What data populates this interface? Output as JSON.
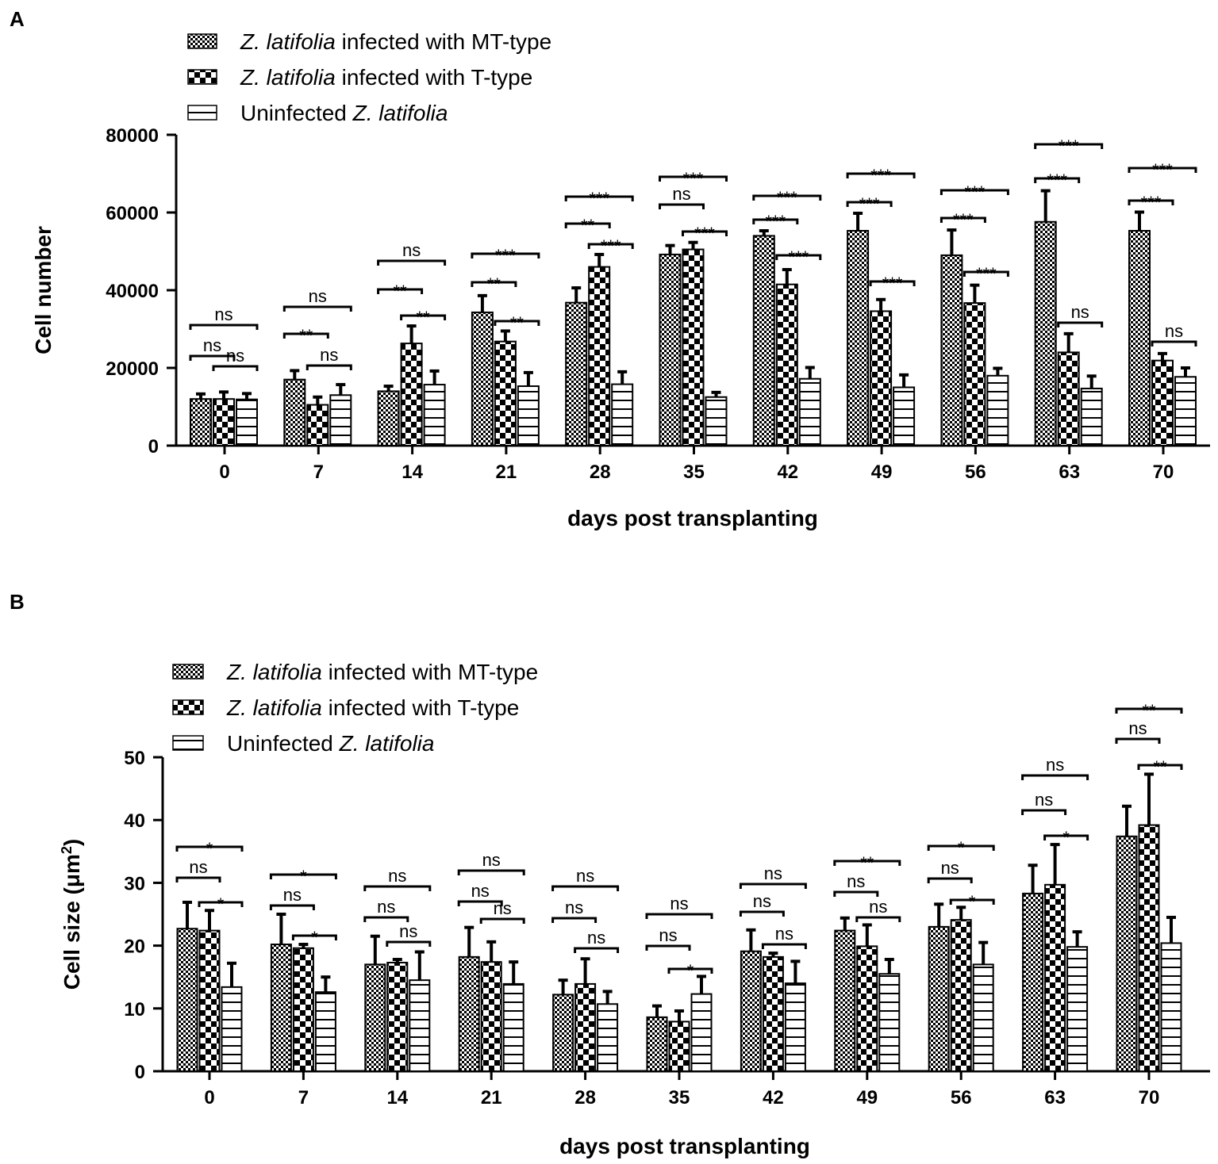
{
  "figure": {
    "panels": [
      "A",
      "B"
    ],
    "legend": {
      "entries": [
        {
          "italic": "Z. latifolia",
          "rest": " infected with MT-type",
          "order": "italic-first"
        },
        {
          "italic": "Z. latifolia",
          "rest": " infected with T-type",
          "order": "italic-first"
        },
        {
          "italic": "Z. latifolia",
          "rest": "Uninfected ",
          "order": "italic-last"
        }
      ]
    },
    "colors": {
      "ink": "#000000",
      "background": "#ffffff"
    }
  },
  "chart_data": [
    {
      "type": "bar",
      "panel": "A",
      "title": "",
      "xlabel": "days post transplanting",
      "ylabel": "Cell number",
      "ylim": [
        0,
        80000
      ],
      "yticks": [
        "0",
        "20000",
        "40000",
        "60000",
        "80000"
      ],
      "yticks_values": [
        0,
        20000,
        40000,
        60000,
        80000
      ],
      "categories": [
        "0",
        "7",
        "14",
        "21",
        "28",
        "35",
        "42",
        "49",
        "56",
        "63",
        "70"
      ],
      "series": [
        {
          "name": "Z. latifolia infected with MT-type",
          "pattern": "fine-check",
          "values": [
            12000,
            17000,
            14000,
            34300,
            36800,
            49200,
            54000,
            55300,
            49000,
            57600,
            55300
          ],
          "errors": [
            1300,
            2300,
            1300,
            4300,
            3800,
            2300,
            1300,
            4500,
            6500,
            8000,
            4800
          ]
        },
        {
          "name": "Z. latifolia infected with T-type",
          "pattern": "coarse-check",
          "values": [
            12000,
            10500,
            26300,
            26800,
            46000,
            50500,
            41500,
            34600,
            36700,
            24000,
            21900
          ],
          "errors": [
            1800,
            2000,
            4500,
            2700,
            3200,
            1800,
            3800,
            3000,
            4600,
            4800,
            1800
          ]
        },
        {
          "name": "Uninfected Z. latifolia",
          "pattern": "horizontal-lines",
          "values": [
            11900,
            13000,
            15700,
            15300,
            15800,
            12500,
            17200,
            15000,
            18000,
            14700,
            17700
          ],
          "errors": [
            1500,
            2700,
            3500,
            3500,
            3200,
            1200,
            2900,
            3200,
            1900,
            3200,
            2300
          ]
        }
      ],
      "significance": [
        {
          "day": "0",
          "mt_t": "ns",
          "t_un": "ns",
          "mt_un": "ns"
        },
        {
          "day": "7",
          "mt_t": "**",
          "t_un": "ns",
          "mt_un": "ns"
        },
        {
          "day": "14",
          "mt_t": "**",
          "t_un": "**",
          "mt_un": "ns"
        },
        {
          "day": "21",
          "mt_t": "**",
          "t_un": "**",
          "mt_un": "***"
        },
        {
          "day": "28",
          "mt_t": "**",
          "t_un": "***",
          "mt_un": "***"
        },
        {
          "day": "35",
          "mt_t": "ns",
          "t_un": "***",
          "mt_un": "***"
        },
        {
          "day": "42",
          "mt_t": "***",
          "t_un": "***",
          "mt_un": "***"
        },
        {
          "day": "49",
          "mt_t": "***",
          "t_un": "***",
          "mt_un": "***"
        },
        {
          "day": "56",
          "mt_t": "***",
          "t_un": "***",
          "mt_un": "***"
        },
        {
          "day": "63",
          "mt_t": "***",
          "t_un": "ns",
          "mt_un": "***"
        },
        {
          "day": "70",
          "mt_t": "***",
          "t_un": "ns",
          "mt_un": "***"
        }
      ],
      "legend_position": "top-left"
    },
    {
      "type": "bar",
      "panel": "B",
      "title": "",
      "xlabel": "days post transplanting",
      "ylabel": "Cell size (μm",
      "ylabel_superscript": "2",
      "ylabel_suffix": ")",
      "ylim": [
        0,
        50
      ],
      "yticks": [
        "0",
        "10",
        "20",
        "30",
        "40",
        "50"
      ],
      "yticks_values": [
        0,
        10,
        20,
        30,
        40,
        50
      ],
      "categories": [
        "0",
        "7",
        "14",
        "21",
        "28",
        "35",
        "42",
        "49",
        "56",
        "63",
        "70"
      ],
      "series": [
        {
          "name": "Z. latifolia infected with MT-type",
          "pattern": "fine-check",
          "values": [
            22.7,
            20.2,
            17.0,
            18.2,
            12.2,
            8.6,
            19.1,
            22.4,
            23.0,
            28.3,
            37.4
          ],
          "errors": [
            4.2,
            4.8,
            4.5,
            4.7,
            2.3,
            1.8,
            3.4,
            2.0,
            3.6,
            4.5,
            4.8
          ]
        },
        {
          "name": "Z. latifolia infected with T-type",
          "pattern": "coarse-check",
          "values": [
            22.4,
            19.6,
            17.3,
            17.4,
            13.9,
            7.9,
            18.2,
            19.9,
            24.1,
            29.7,
            39.2
          ],
          "errors": [
            3.2,
            0.6,
            0.5,
            3.2,
            4.0,
            1.7,
            0.6,
            3.4,
            2.0,
            6.4,
            8.1
          ]
        },
        {
          "name": "Uninfected Z. latifolia",
          "pattern": "horizontal-lines",
          "values": [
            13.4,
            12.6,
            14.5,
            13.9,
            10.7,
            12.3,
            14.0,
            15.5,
            17.0,
            19.8,
            20.4
          ],
          "errors": [
            3.8,
            2.4,
            4.5,
            3.5,
            2.0,
            2.8,
            3.5,
            2.3,
            3.5,
            2.4,
            4.1
          ]
        }
      ],
      "significance": [
        {
          "day": "0",
          "mt_t": "ns",
          "t_un": "*",
          "mt_un": "*"
        },
        {
          "day": "7",
          "mt_t": "ns",
          "t_un": "*",
          "mt_un": "*"
        },
        {
          "day": "14",
          "mt_t": "ns",
          "t_un": "ns",
          "mt_un": "ns"
        },
        {
          "day": "21",
          "mt_t": "ns",
          "t_un": "ns",
          "mt_un": "ns"
        },
        {
          "day": "28",
          "mt_t": "ns",
          "t_un": "ns",
          "mt_un": "ns"
        },
        {
          "day": "35",
          "mt_t": "ns",
          "t_un": "*",
          "mt_un": "ns"
        },
        {
          "day": "42",
          "mt_t": "ns",
          "t_un": "ns",
          "mt_un": "ns"
        },
        {
          "day": "49",
          "mt_t": "ns",
          "t_un": "ns",
          "mt_un": "**"
        },
        {
          "day": "56",
          "mt_t": "ns",
          "t_un": "*",
          "mt_un": "*"
        },
        {
          "day": "63",
          "mt_t": "ns",
          "t_un": "*",
          "mt_un": "ns"
        },
        {
          "day": "70",
          "mt_t": "ns",
          "t_un": "**",
          "mt_un": "**"
        }
      ],
      "legend_position": "top-left"
    }
  ]
}
